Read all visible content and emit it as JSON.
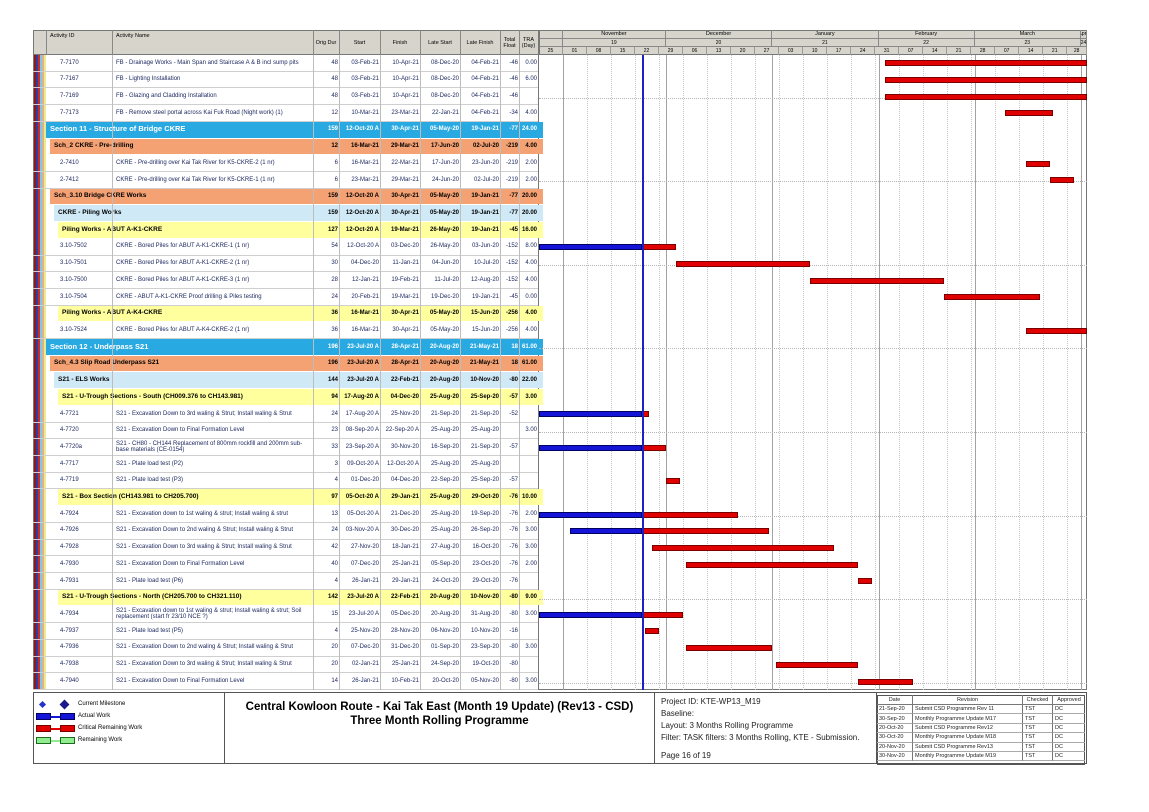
{
  "sheet": {
    "title_line1": "Central Kowloon Route - Kai Tak East (Month 19 Update) (Rev13 - CSD)",
    "title_line2": "Three Month Rolling Programme",
    "project_info": {
      "project_id": "Project ID: KTE-WP13_M19",
      "baseline": "Baseline:",
      "layout": "Layout: 3 Months Rolling Programme",
      "filter": "Filter: TASK filters: 3 Months Rolling, KTE - Submission.",
      "page": "Page 16 of 19"
    },
    "revision_table": {
      "headers": [
        "Date",
        "Revision",
        "Checked",
        "Approved"
      ],
      "rows": [
        [
          "21-Sep-20",
          "Submit CSD Programme Rev 11",
          "TST",
          "DC"
        ],
        [
          "30-Sep-20",
          "Monthly Programme Update M17",
          "TST",
          "DC"
        ],
        [
          "20-Oct-20",
          "Submit CSD Programme Rev12",
          "TST",
          "DC"
        ],
        [
          "30-Oct-20",
          "Monthly Programme Update M18",
          "TST",
          "DC"
        ],
        [
          "20-Nov-20",
          "Submit CSD Programme Rev13",
          "TST",
          "DC"
        ],
        [
          "30-Nov-20",
          "Monthly Programme Update M19",
          "TST",
          "DC"
        ]
      ]
    },
    "legend": [
      {
        "icon": "current-milestone-icon",
        "label": "Current Milestone"
      },
      {
        "icon": "actual-work-icon",
        "label": "Actual Work"
      },
      {
        "icon": "critical-remaining-work-icon",
        "label": "Critical Remaining Work"
      },
      {
        "icon": "remaining-work-icon",
        "label": "Remaining Work"
      }
    ]
  },
  "colors": {
    "section_band": "#29a9e1",
    "section_band_text": "#ffffff",
    "schedule_band": "#f4a173",
    "subgroup_band": "#cfe9f7",
    "workgroup_band": "#ffff9e",
    "actual_bar": "#1414d8",
    "actual_bar_border": "#000060",
    "critical_bar": "#e00000",
    "critical_bar_border": "#7a0000",
    "remaining_bar": "#90ee90",
    "remaining_bar_border": "#1a6b1a",
    "data_date_line": "#2020c8",
    "header_bg": "#d7d4cc",
    "outline_strips": [
      "#8a1a1e",
      "#2b3f9e",
      "#cf2b2b",
      "#7fc6e8",
      "#d9b489",
      "#efe98e"
    ]
  },
  "table": {
    "columns": [
      {
        "key": "id",
        "label": "Activity ID"
      },
      {
        "key": "name",
        "label": "Activity Name"
      },
      {
        "key": "dur",
        "label": "Orig Dur"
      },
      {
        "key": "start",
        "label": "Start"
      },
      {
        "key": "finish",
        "label": "Finish"
      },
      {
        "key": "late_start",
        "label": "Late Start"
      },
      {
        "key": "late_finish",
        "label": "Late Finish"
      },
      {
        "key": "total_float",
        "label": "Total Float"
      },
      {
        "key": "tra",
        "label": "TRA (Day)"
      }
    ]
  },
  "chart_data": {
    "type": "bar",
    "subtype": "gantt",
    "timeline": {
      "window_start": "25-Oct-20",
      "window_end": "03-Apr-21",
      "data_date": "24-Nov-20",
      "months": [
        {
          "label": "",
          "num": "",
          "start": "25-Oct-20",
          "end": "01-Nov-20"
        },
        {
          "label": "November",
          "num": "19",
          "start": "01-Nov-20",
          "end": "01-Dec-20"
        },
        {
          "label": "December",
          "num": "20",
          "start": "01-Dec-20",
          "end": "01-Jan-21"
        },
        {
          "label": "January",
          "num": "21",
          "start": "01-Jan-21",
          "end": "01-Feb-21"
        },
        {
          "label": "February",
          "num": "22",
          "start": "01-Feb-21",
          "end": "01-Mar-21"
        },
        {
          "label": "March",
          "num": "23",
          "start": "01-Mar-21",
          "end": "01-Apr-21"
        },
        {
          "label": "April",
          "num": "24",
          "start": "01-Apr-21",
          "end": "03-Apr-21"
        }
      ],
      "weeks": [
        "25",
        "01",
        "08",
        "15",
        "22",
        "29",
        "06",
        "13",
        "20",
        "27",
        "03",
        "10",
        "17",
        "24",
        "31",
        "07",
        "14",
        "21",
        "28",
        "07",
        "14",
        "21",
        "28"
      ]
    },
    "rows": [
      {
        "band": 0,
        "id": "7-7170",
        "name": "FB - Drainage Works - Main Span and Staircase A & B incl sump pits",
        "dur": "48",
        "start": "03-Feb-21",
        "finish": "10-Apr-21",
        "late_start": "08-Dec-20",
        "late_finish": "04-Feb-21",
        "total_float": "-46",
        "tra": "0.00"
      },
      {
        "band": 0,
        "id": "7-7167",
        "name": "FB - Lighting Installation",
        "dur": "48",
        "start": "03-Feb-21",
        "finish": "10-Apr-21",
        "late_start": "08-Dec-20",
        "late_finish": "04-Feb-21",
        "total_float": "-46",
        "tra": "6.00"
      },
      {
        "band": 0,
        "id": "7-7169",
        "name": "FB - Glazing and Cladding Installation",
        "dur": "48",
        "start": "03-Feb-21",
        "finish": "10-Apr-21",
        "late_start": "08-Dec-20",
        "late_finish": "04-Feb-21",
        "total_float": "-46",
        "tra": ""
      },
      {
        "band": 0,
        "id": "7-7173",
        "name": "FB - Remove steel portal across Kai Fuk Road (Night work) (1)",
        "dur": "12",
        "start": "10-Mar-21",
        "finish": "23-Mar-21",
        "late_start": "22-Jan-21",
        "late_finish": "04-Feb-21",
        "total_float": "-34",
        "tra": "4.00"
      },
      {
        "band": 1,
        "id": "",
        "name": "Section 11 - Structure of Bridge CKRE",
        "dur": "159",
        "start": "12-Oct-20 A",
        "finish": "30-Apr-21",
        "late_start": "05-May-20",
        "late_finish": "19-Jan-21",
        "total_float": "-77",
        "tra": "24.00"
      },
      {
        "band": 2,
        "id": "",
        "name": "Sch_2 CKRE - Pre-drilling",
        "dur": "12",
        "start": "16-Mar-21",
        "finish": "29-Mar-21",
        "late_start": "17-Jun-20",
        "late_finish": "02-Jul-20",
        "total_float": "-219",
        "tra": "4.00"
      },
      {
        "band": 0,
        "id": "2-7410",
        "name": "CKRE - Pre-drilling over Kai Tak River for K5-CKRE-2 (1 nr)",
        "dur": "6",
        "start": "16-Mar-21",
        "finish": "22-Mar-21",
        "late_start": "17-Jun-20",
        "late_finish": "23-Jun-20",
        "total_float": "-219",
        "tra": "2.00"
      },
      {
        "band": 0,
        "id": "2-7412",
        "name": "CKRE - Pre-drilling over Kai Tak River for K5-CKRE-1 (1 nr)",
        "dur": "6",
        "start": "23-Mar-21",
        "finish": "29-Mar-21",
        "late_start": "24-Jun-20",
        "late_finish": "02-Jul-20",
        "total_float": "-219",
        "tra": "2.00"
      },
      {
        "band": 2,
        "id": "",
        "name": "Sch_3.10 Bridge CKRE Works",
        "dur": "159",
        "start": "12-Oct-20 A",
        "finish": "30-Apr-21",
        "late_start": "05-May-20",
        "late_finish": "19-Jan-21",
        "total_float": "-77",
        "tra": "20.00"
      },
      {
        "band": 3,
        "id": "",
        "name": "CKRE - Piling Works",
        "dur": "159",
        "start": "12-Oct-20 A",
        "finish": "30-Apr-21",
        "late_start": "05-May-20",
        "late_finish": "19-Jan-21",
        "total_float": "-77",
        "tra": "20.00"
      },
      {
        "band": 4,
        "id": "",
        "name": "Piling Works - ABUT A-K1-CKRE",
        "dur": "127",
        "start": "12-Oct-20 A",
        "finish": "19-Mar-21",
        "late_start": "26-May-20",
        "late_finish": "19-Jan-21",
        "total_float": "-45",
        "tra": "16.00"
      },
      {
        "band": 0,
        "id": "3.10-7502",
        "name": "CKRE - Bored Piles for ABUT A-K1-CKRE-1 (1 nr)",
        "dur": "54",
        "start": "12-Oct-20 A",
        "finish": "03-Dec-20",
        "late_start": "26-May-20",
        "late_finish": "03-Jun-20",
        "total_float": "-152",
        "tra": "8.00"
      },
      {
        "band": 0,
        "id": "3.10-7501",
        "name": "CKRE - Bored Piles for ABUT A-K1-CKRE-2 (1 nr)",
        "dur": "30",
        "start": "04-Dec-20",
        "finish": "11-Jan-21",
        "late_start": "04-Jun-20",
        "late_finish": "10-Jul-20",
        "total_float": "-152",
        "tra": "4.00"
      },
      {
        "band": 0,
        "id": "3.10-7500",
        "name": "CKRE - Bored Piles for ABUT A-K1-CKRE-3 (1 nr)",
        "dur": "28",
        "start": "12-Jan-21",
        "finish": "19-Feb-21",
        "late_start": "11-Jul-20",
        "late_finish": "12-Aug-20",
        "total_float": "-152",
        "tra": "4.00"
      },
      {
        "band": 0,
        "id": "3.10-7504",
        "name": "CKRE - ABUT A-K1-CKRE Proof drilling & Piles testing",
        "dur": "24",
        "start": "20-Feb-21",
        "finish": "19-Mar-21",
        "late_start": "19-Dec-20",
        "late_finish": "19-Jan-21",
        "total_float": "-45",
        "tra": "0.00"
      },
      {
        "band": 4,
        "id": "",
        "name": "Piling Works - ABUT A-K4-CKRE",
        "dur": "36",
        "start": "16-Mar-21",
        "finish": "30-Apr-21",
        "late_start": "05-May-20",
        "late_finish": "15-Jun-20",
        "total_float": "-256",
        "tra": "4.00"
      },
      {
        "band": 0,
        "id": "3.10-7524",
        "name": "CKRE - Bored Piles for ABUT A-K4-CKRE-2 (1 nr)",
        "dur": "36",
        "start": "16-Mar-21",
        "finish": "30-Apr-21",
        "late_start": "05-May-20",
        "late_finish": "15-Jun-20",
        "total_float": "-256",
        "tra": "4.00"
      },
      {
        "band": 1,
        "id": "",
        "name": "Section 12 - Underpass S21",
        "dur": "196",
        "start": "23-Jul-20 A",
        "finish": "28-Apr-21",
        "late_start": "20-Aug-20",
        "late_finish": "21-May-21",
        "total_float": "18",
        "tra": "61.00"
      },
      {
        "band": 2,
        "id": "",
        "name": "Sch_4.3 Slip Road Underpass S21",
        "dur": "196",
        "start": "23-Jul-20 A",
        "finish": "28-Apr-21",
        "late_start": "20-Aug-20",
        "late_finish": "21-May-21",
        "total_float": "18",
        "tra": "61.00"
      },
      {
        "band": 3,
        "id": "",
        "name": "S21 - ELS Works",
        "dur": "144",
        "start": "23-Jul-20 A",
        "finish": "22-Feb-21",
        "late_start": "20-Aug-20",
        "late_finish": "10-Nov-20",
        "total_float": "-80",
        "tra": "22.00"
      },
      {
        "band": 4,
        "id": "",
        "name": "S21 - U-Trough Sections - South (CH009.376 to CH143.981)",
        "dur": "94",
        "start": "17-Aug-20 A",
        "finish": "04-Dec-20",
        "late_start": "25-Aug-20",
        "late_finish": "25-Sep-20",
        "total_float": "-57",
        "tra": "3.00"
      },
      {
        "band": 0,
        "id": "4-7721",
        "name": "S21 - Excavation Down to 3rd waling & Strut; Install waling & Strut",
        "dur": "24",
        "start": "17-Aug-20 A",
        "finish": "25-Nov-20",
        "late_start": "21-Sep-20",
        "late_finish": "21-Sep-20",
        "total_float": "-52",
        "tra": ""
      },
      {
        "band": 0,
        "id": "4-7720",
        "name": "S21 - Excavation Down to Final Formation Level",
        "dur": "23",
        "start": "08-Sep-20 A",
        "finish": "22-Sep-20 A",
        "late_start": "25-Aug-20",
        "late_finish": "25-Aug-20",
        "total_float": "",
        "tra": "3.00"
      },
      {
        "band": 0,
        "id": "4-7720a",
        "name": "S21 - CH80 - CH144 Replacement of 800mm rockfill and 200mm sub-base materials (CE-0154)",
        "dur": "33",
        "start": "23-Sep-20 A",
        "finish": "30-Nov-20",
        "late_start": "16-Sep-20",
        "late_finish": "21-Sep-20",
        "total_float": "-57",
        "tra": ""
      },
      {
        "band": 0,
        "id": "4-7717",
        "name": "S21 - Plate load test (P2)",
        "dur": "3",
        "start": "09-Oct-20 A",
        "finish": "12-Oct-20 A",
        "late_start": "25-Aug-20",
        "late_finish": "25-Aug-20",
        "total_float": "",
        "tra": ""
      },
      {
        "band": 0,
        "id": "4-7719",
        "name": "S21 - Plate load test (P3)",
        "dur": "4",
        "start": "01-Dec-20",
        "finish": "04-Dec-20",
        "late_start": "22-Sep-20",
        "late_finish": "25-Sep-20",
        "total_float": "-57",
        "tra": ""
      },
      {
        "band": 4,
        "id": "",
        "name": "S21 - Box Section (CH143.981 to CH205.700)",
        "dur": "97",
        "start": "05-Oct-20 A",
        "finish": "29-Jan-21",
        "late_start": "25-Aug-20",
        "late_finish": "29-Oct-20",
        "total_float": "-76",
        "tra": "10.00"
      },
      {
        "band": 0,
        "id": "4-7924",
        "name": "S21 - Excavation down to 1st waling & strut; Install waling & strut",
        "dur": "13",
        "start": "05-Oct-20 A",
        "finish": "21-Dec-20",
        "late_start": "25-Aug-20",
        "late_finish": "19-Sep-20",
        "total_float": "-76",
        "tra": "2.00"
      },
      {
        "band": 0,
        "id": "4-7926",
        "name": "S21 - Excavation Down to 2nd waling & Strut; Install waling & Strut",
        "dur": "24",
        "start": "03-Nov-20 A",
        "finish": "30-Dec-20",
        "late_start": "25-Aug-20",
        "late_finish": "26-Sep-20",
        "total_float": "-76",
        "tra": "3.00"
      },
      {
        "band": 0,
        "id": "4-7928",
        "name": "S21 - Excavation Down to 3rd waling & Strut; Install waling & Strut",
        "dur": "42",
        "start": "27-Nov-20",
        "finish": "18-Jan-21",
        "late_start": "27-Aug-20",
        "late_finish": "16-Oct-20",
        "total_float": "-76",
        "tra": "3.00"
      },
      {
        "band": 0,
        "id": "4-7930",
        "name": "S21 - Excavation Down to Final Formation Level",
        "dur": "40",
        "start": "07-Dec-20",
        "finish": "25-Jan-21",
        "late_start": "05-Sep-20",
        "late_finish": "23-Oct-20",
        "total_float": "-76",
        "tra": "2.00"
      },
      {
        "band": 0,
        "id": "4-7931",
        "name": "S21 - Plate load test (P6)",
        "dur": "4",
        "start": "26-Jan-21",
        "finish": "29-Jan-21",
        "late_start": "24-Oct-20",
        "late_finish": "29-Oct-20",
        "total_float": "-76",
        "tra": ""
      },
      {
        "band": 4,
        "id": "",
        "name": "S21 - U-Trough Sections - North (CH205.700 to CH321.110)",
        "dur": "142",
        "start": "23-Jul-20 A",
        "finish": "22-Feb-21",
        "late_start": "20-Aug-20",
        "late_finish": "10-Nov-20",
        "total_float": "-80",
        "tra": "9.00"
      },
      {
        "band": 0,
        "id": "4-7934",
        "name": "S21 - Excavation down to 1st waling & strut; Install waling & strut; Soil replacement (start fr 23/10 NCE ?)",
        "dur": "15",
        "start": "23-Jul-20 A",
        "finish": "05-Dec-20",
        "late_start": "20-Aug-20",
        "late_finish": "31-Aug-20",
        "total_float": "-80",
        "tra": "3.00"
      },
      {
        "band": 0,
        "id": "4-7937",
        "name": "S21 - Plate load test (P5)",
        "dur": "4",
        "start": "25-Nov-20",
        "finish": "28-Nov-20",
        "late_start": "06-Nov-20",
        "late_finish": "10-Nov-20",
        "total_float": "-16",
        "tra": ""
      },
      {
        "band": 0,
        "id": "4-7936",
        "name": "S21 - Excavation Down to 2nd waling & Strut; Install waling & Strut",
        "dur": "20",
        "start": "07-Dec-20",
        "finish": "31-Dec-20",
        "late_start": "01-Sep-20",
        "late_finish": "23-Sep-20",
        "total_float": "-80",
        "tra": "3.00"
      },
      {
        "band": 0,
        "id": "4-7938",
        "name": "S21 - Excavation Down to 3rd waling & Strut; Install waling & Strut",
        "dur": "20",
        "start": "02-Jan-21",
        "finish": "25-Jan-21",
        "late_start": "24-Sep-20",
        "late_finish": "19-Oct-20",
        "total_float": "-80",
        "tra": ""
      },
      {
        "band": 0,
        "id": "4-7940",
        "name": "S21 - Excavation Down to Final Formation Level",
        "dur": "14",
        "start": "26-Jan-21",
        "finish": "10-Feb-21",
        "late_start": "20-Oct-20",
        "late_finish": "05-Nov-20",
        "total_float": "-80",
        "tra": "3.00"
      }
    ]
  }
}
